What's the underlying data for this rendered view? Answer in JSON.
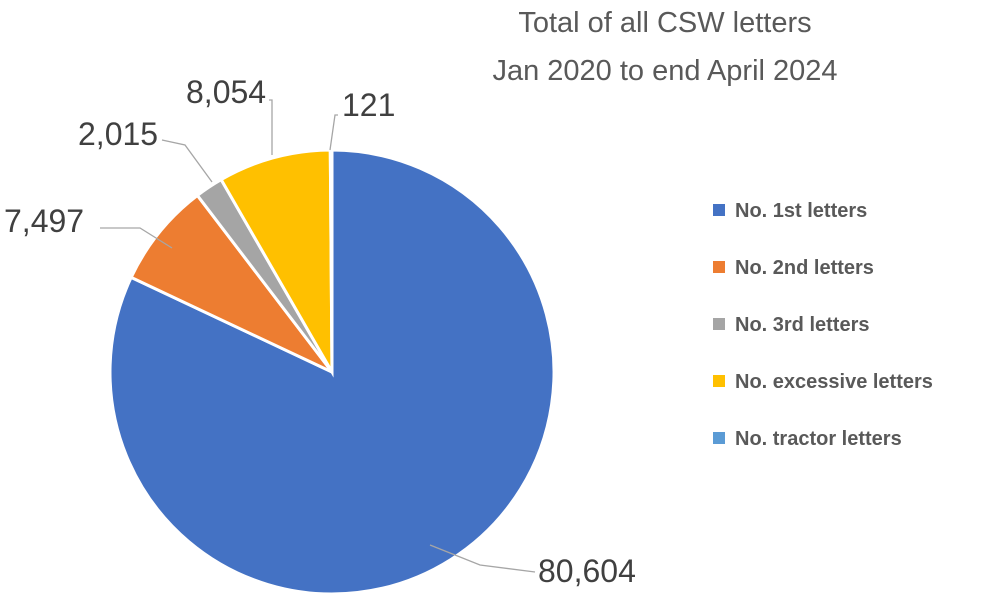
{
  "chart_data": {
    "type": "pie",
    "title": [
      "Total of all CSW letters",
      "Jan 2020 to end April 2024"
    ],
    "categories": [
      "No. 1st letters",
      "No. 2nd letters",
      "No. 3rd letters",
      "No. excessive letters",
      "No. tractor letters"
    ],
    "values": [
      80604,
      7497,
      2015,
      8054,
      121
    ],
    "labels": [
      "80,604",
      "7,497",
      "2,015",
      "8,054",
      "121"
    ],
    "colors": [
      "#4472c4",
      "#ed7d31",
      "#a5a5a5",
      "#ffc000",
      "#5b9bd5"
    ],
    "legend": "right",
    "start_angle": "12 o'clock",
    "direction": "clockwise"
  }
}
